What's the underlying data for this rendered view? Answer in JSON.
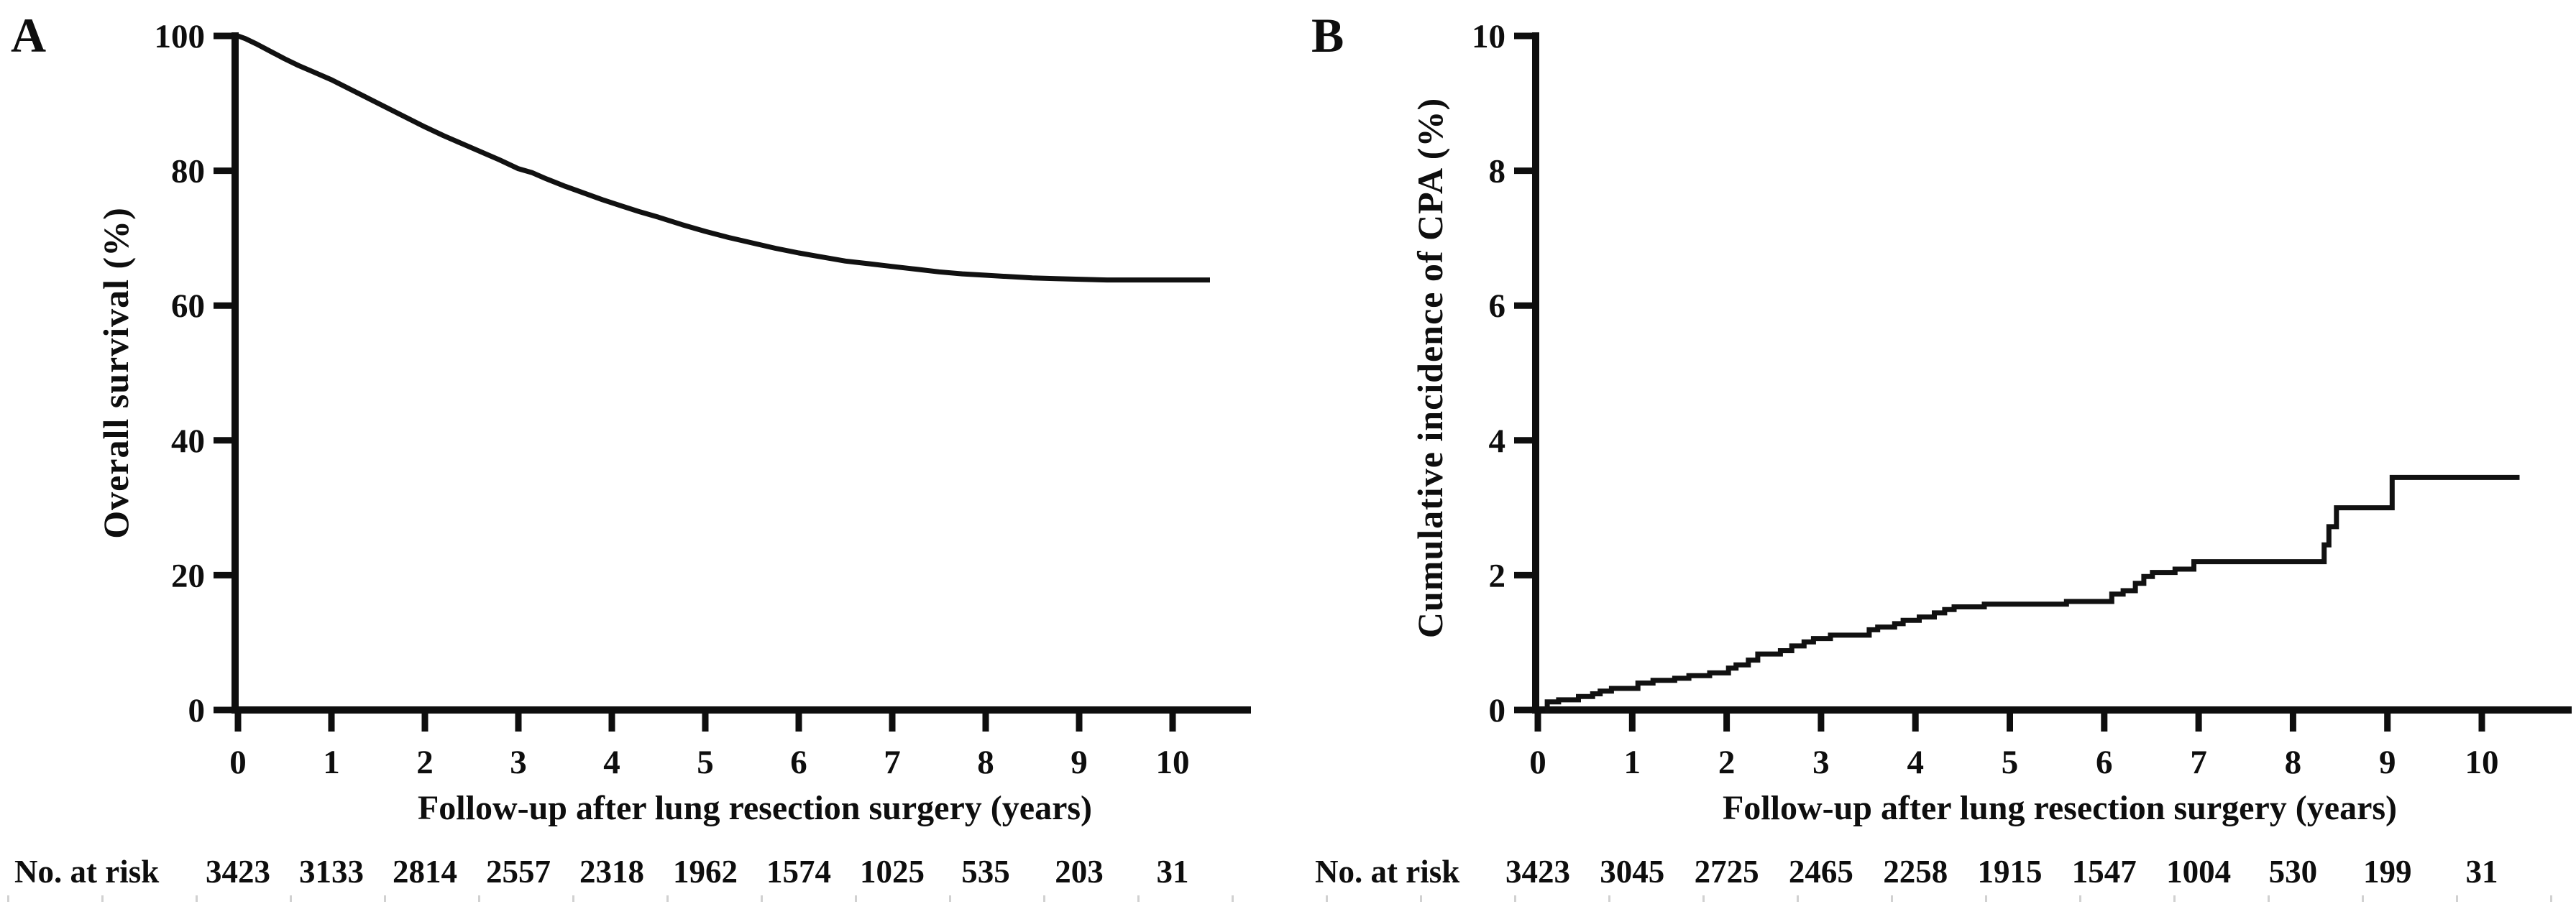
{
  "figure": {
    "background": "#ffffff",
    "ink_color": "#0e0e0e",
    "curve_color": "#111111",
    "faint_tick_color": "#c9c9c9"
  },
  "chart_data": [
    {
      "panel_label": "A",
      "type": "line",
      "title": "",
      "xlabel": "Follow-up after lung resection surgery (years)",
      "ylabel": "Overall survival (%)",
      "xlim": [
        0,
        10.85
      ],
      "ylim": [
        0,
        100
      ],
      "x_ticks": [
        0,
        1,
        2,
        3,
        4,
        5,
        6,
        7,
        8,
        9,
        10
      ],
      "y_ticks": [
        0,
        20,
        40,
        60,
        80,
        100
      ],
      "grid": false,
      "legend": "none",
      "series": [
        {
          "name": "Overall survival",
          "points": [
            [
              0,
              100
            ],
            [
              0.08,
              99.6
            ],
            [
              0.2,
              98.8
            ],
            [
              0.35,
              97.7
            ],
            [
              0.5,
              96.6
            ],
            [
              0.65,
              95.6
            ],
            [
              0.8,
              94.7
            ],
            [
              1.0,
              93.5
            ],
            [
              1.2,
              92.1
            ],
            [
              1.4,
              90.7
            ],
            [
              1.6,
              89.3
            ],
            [
              1.8,
              87.9
            ],
            [
              2.0,
              86.5
            ],
            [
              2.2,
              85.2
            ],
            [
              2.4,
              84.0
            ],
            [
              2.6,
              82.8
            ],
            [
              2.8,
              81.6
            ],
            [
              3.0,
              80.3
            ],
            [
              3.15,
              79.7
            ],
            [
              3.3,
              78.8
            ],
            [
              3.5,
              77.7
            ],
            [
              3.7,
              76.7
            ],
            [
              3.9,
              75.7
            ],
            [
              4.1,
              74.8
            ],
            [
              4.3,
              73.9
            ],
            [
              4.5,
              73.1
            ],
            [
              4.75,
              72.0
            ],
            [
              5.0,
              71.0
            ],
            [
              5.25,
              70.1
            ],
            [
              5.5,
              69.3
            ],
            [
              5.75,
              68.5
            ],
            [
              6.0,
              67.8
            ],
            [
              6.25,
              67.2
            ],
            [
              6.5,
              66.6
            ],
            [
              6.75,
              66.2
            ],
            [
              7.0,
              65.8
            ],
            [
              7.25,
              65.4
            ],
            [
              7.5,
              65.0
            ],
            [
              7.75,
              64.7
            ],
            [
              8.0,
              64.5
            ],
            [
              8.25,
              64.3
            ],
            [
              8.5,
              64.1
            ],
            [
              8.75,
              64.0
            ],
            [
              9.0,
              63.9
            ],
            [
              9.3,
              63.8
            ],
            [
              9.7,
              63.8
            ],
            [
              10.0,
              63.8
            ],
            [
              10.4,
              63.8
            ]
          ]
        }
      ],
      "at_risk": {
        "label": "No. at risk",
        "values": [
          3423,
          3133,
          2814,
          2557,
          2318,
          1962,
          1574,
          1025,
          535,
          203,
          31
        ]
      }
    },
    {
      "panel_label": "B",
      "type": "step",
      "title": "",
      "xlabel": "Follow-up after lung resection surgery (years)",
      "ylabel": "Cumulative incidence of CPA (%)",
      "xlim": [
        0,
        10.85
      ],
      "ylim": [
        0,
        10
      ],
      "x_ticks": [
        0,
        1,
        2,
        3,
        4,
        5,
        6,
        7,
        8,
        9,
        10
      ],
      "y_ticks": [
        0,
        2,
        4,
        6,
        8,
        10
      ],
      "grid": false,
      "legend": "none",
      "series": [
        {
          "name": "Cumulative incidence of CPA",
          "x_start": 0.08,
          "x_end": 10.4,
          "start_level": 0,
          "steps": [
            [
              0.1,
              0.12
            ],
            [
              0.22,
              0.15
            ],
            [
              0.43,
              0.2
            ],
            [
              0.58,
              0.24
            ],
            [
              0.66,
              0.28
            ],
            [
              0.78,
              0.32
            ],
            [
              1.06,
              0.4
            ],
            [
              1.22,
              0.44
            ],
            [
              1.45,
              0.47
            ],
            [
              1.6,
              0.51
            ],
            [
              1.82,
              0.55
            ],
            [
              2.02,
              0.62
            ],
            [
              2.1,
              0.67
            ],
            [
              2.23,
              0.74
            ],
            [
              2.33,
              0.83
            ],
            [
              2.57,
              0.88
            ],
            [
              2.69,
              0.95
            ],
            [
              2.82,
              1.01
            ],
            [
              2.92,
              1.06
            ],
            [
              3.1,
              1.11
            ],
            [
              3.51,
              1.19
            ],
            [
              3.6,
              1.23
            ],
            [
              3.78,
              1.28
            ],
            [
              3.87,
              1.33
            ],
            [
              4.04,
              1.38
            ],
            [
              4.2,
              1.44
            ],
            [
              4.31,
              1.49
            ],
            [
              4.41,
              1.53
            ],
            [
              4.73,
              1.57
            ],
            [
              5.6,
              1.61
            ],
            [
              6.08,
              1.72
            ],
            [
              6.2,
              1.77
            ],
            [
              6.33,
              1.88
            ],
            [
              6.42,
              1.98
            ],
            [
              6.51,
              2.04
            ],
            [
              6.75,
              2.09
            ],
            [
              6.95,
              2.2
            ],
            [
              8.33,
              2.45
            ],
            [
              8.38,
              2.72
            ],
            [
              8.46,
              3.0
            ],
            [
              9.05,
              3.45
            ]
          ]
        }
      ],
      "at_risk": {
        "label": "No. at risk",
        "values": [
          3423,
          3045,
          2725,
          2465,
          2258,
          1915,
          1547,
          1004,
          530,
          199,
          31
        ]
      }
    }
  ]
}
